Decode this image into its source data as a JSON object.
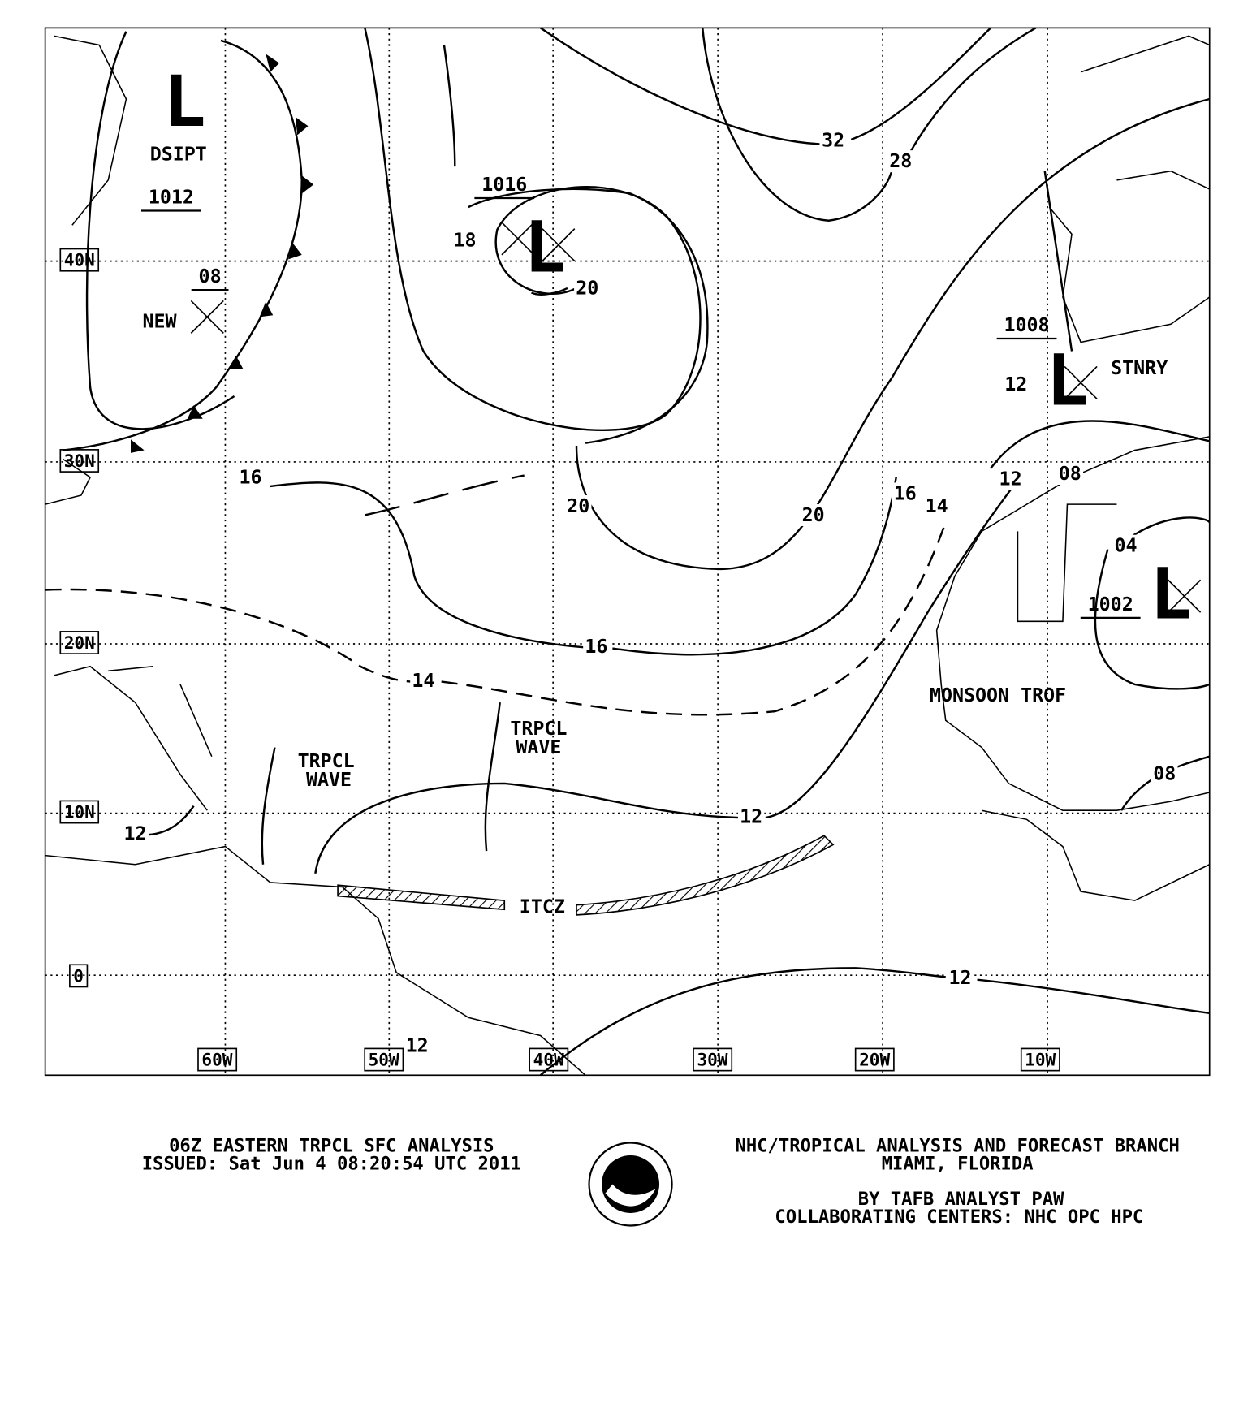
{
  "map": {
    "lat_labels": [
      "40N",
      "30N",
      "20N",
      "10N",
      "0"
    ],
    "lon_labels": [
      "60W",
      "50W",
      "40W",
      "30W",
      "20W",
      "10W"
    ],
    "lows": [
      {
        "symbol": "L",
        "pressure": "1012",
        "status": "DSIPT"
      },
      {
        "pressure": "08",
        "status": "NEW"
      },
      {
        "symbol": "L",
        "pressure": "1016"
      },
      {
        "symbol": "L",
        "pressure": "1008",
        "status": "STNRY"
      },
      {
        "symbol": "L",
        "pressure": "1002"
      }
    ],
    "isobar_labels": [
      "18",
      "20",
      "32",
      "28",
      "12",
      "16",
      "20",
      "20",
      "16",
      "14",
      "12",
      "08",
      "04",
      "16",
      "14",
      "12",
      "12",
      "08",
      "12",
      "12"
    ],
    "features": {
      "monsoon": "MONSOON TROF",
      "waves": [
        [
          "TRPCL",
          "WAVE"
        ],
        [
          "TRPCL",
          "WAVE"
        ]
      ],
      "itcz": "ITCZ"
    }
  },
  "footer": {
    "title": "06Z EASTERN TRPCL SFC ANALYSIS",
    "issued": "ISSUED: Sat Jun 4 08:20:54 UTC 2011",
    "office": "NHC/TROPICAL ANALYSIS AND FORECAST BRANCH",
    "location": "MIAMI,   FLORIDA",
    "analyst": "BY TAFB ANALYST  PAW",
    "centers": "COLLABORATING CENTERS: NHC OPC HPC",
    "logo": "NOAA"
  }
}
